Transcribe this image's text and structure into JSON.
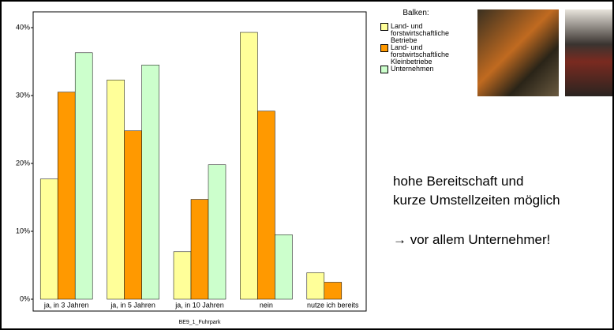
{
  "chart_data": {
    "type": "bar",
    "x_label": "BE9_1_Fuhrpark",
    "categories": [
      "ja, in 3 Jahren",
      "ja, in 5 Jahren",
      "ja, in 10 Jahren",
      "nein",
      "nutze ich bereits"
    ],
    "series": [
      {
        "name": "Land- und forstwirtschaftliche Betriebe",
        "color": "#ffff99",
        "values": [
          17.7,
          32.3,
          7.0,
          39.3,
          3.9
        ]
      },
      {
        "name": "Land- und forstwirtschaftliche Kleinbetriebe",
        "color": "#ff9900",
        "values": [
          30.5,
          24.8,
          14.7,
          27.7,
          2.5
        ]
      },
      {
        "name": "Unternehmen",
        "color": "#ccffcc",
        "values": [
          36.3,
          34.5,
          19.8,
          9.5,
          null
        ]
      }
    ],
    "legend_title": "Balken:",
    "ylim": [
      0,
      40
    ],
    "yticks": [
      {
        "value": 0,
        "label": "0%"
      },
      {
        "value": 10,
        "label": "10%"
      },
      {
        "value": 20,
        "label": "20%"
      },
      {
        "value": 30,
        "label": "30%"
      },
      {
        "value": 40,
        "label": "40%"
      }
    ]
  },
  "annotations": [
    "hohe Bereitschaft und",
    "kurze Umstellzeiten möglich",
    "→ vor allem Unternehmer!"
  ]
}
